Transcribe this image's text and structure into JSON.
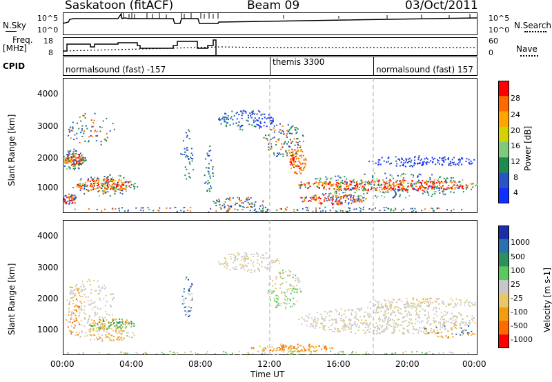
{
  "header": {
    "station": "Saskatoon (fitACF)",
    "beam": "Beam 09",
    "date": "03/Oct/2011"
  },
  "noise_panel": {
    "left_label": "N.Sky",
    "left_ticks": [
      "10^5",
      "10^0"
    ],
    "right_label": "N.Search",
    "right_ticks": [
      "10^5",
      "10^0"
    ]
  },
  "freq_panel": {
    "left_label_line1": "Freq.",
    "left_label_line2": "[MHz]",
    "left_ticks": [
      "18",
      "8"
    ],
    "right_label": "Nave",
    "right_ticks": [
      "60",
      "0"
    ]
  },
  "cpid_panel": {
    "label": "CPID",
    "segments": [
      {
        "label": "normalsound (fast) -157",
        "start_hour": 0
      },
      {
        "label": "themis 3300",
        "start_hour": 12
      },
      {
        "label": "normalsound (fast) 157",
        "start_hour": 18
      }
    ]
  },
  "power_panel": {
    "ylabel": "Slant Range [km]",
    "yticks": [
      "4000",
      "3000",
      "2000",
      "1000"
    ],
    "colorbar_label": "Power [dB]",
    "colorbar_ticks": [
      "28",
      "24",
      "20",
      "16",
      "12",
      "8",
      "4"
    ],
    "colorbar_colors": [
      "#ff0000",
      "#ff6a00",
      "#ffa500",
      "#d2d200",
      "#7fc97f",
      "#1f8a50",
      "#2c52c8",
      "#1030ff"
    ]
  },
  "velocity_panel": {
    "ylabel": "Slant Range [km]",
    "yticks": [
      "4000",
      "3000",
      "2000",
      "1000"
    ],
    "colorbar_label": "Velocity [m s-1]",
    "colorbar_ticks": [
      "1000",
      "500",
      "100",
      "25",
      "-25",
      "-100",
      "-500",
      "-1000"
    ],
    "colorbar_colors": [
      "#1a2ea8",
      "#2e6fb0",
      "#2f8f5c",
      "#5ac85a",
      "#c8c8c8",
      "#e6c86a",
      "#f39c12",
      "#ff6a00",
      "#ff0000"
    ]
  },
  "xaxis": {
    "label": "Time UT",
    "ticks": [
      "00:00",
      "04:00",
      "08:00",
      "12:00",
      "16:00",
      "20:00",
      "00:00"
    ]
  },
  "chart_data": {
    "type": "heatmap",
    "title": "Saskatoon (fitACF)",
    "xlabel": "Time UT",
    "ylabel": "Slant Range [km]",
    "x_range_hours": [
      0,
      24
    ],
    "y_range_km": [
      200,
      4600
    ],
    "power_bands": [
      {
        "start_hour": 0.0,
        "end_hour": 1.0,
        "range_km": 1800,
        "power_db": 22
      },
      {
        "start_hour": 1.5,
        "end_hour": 4.0,
        "range_km": 1050,
        "power_db": 24
      },
      {
        "start_hour": 13.0,
        "end_hour": 14.0,
        "range_km": 1600,
        "power_db": 22
      },
      {
        "start_hour": 14.0,
        "end_hour": 24.0,
        "range_km": 1050,
        "power_db": 24
      }
    ],
    "vertical_markers_hours": [
      12,
      18
    ]
  }
}
